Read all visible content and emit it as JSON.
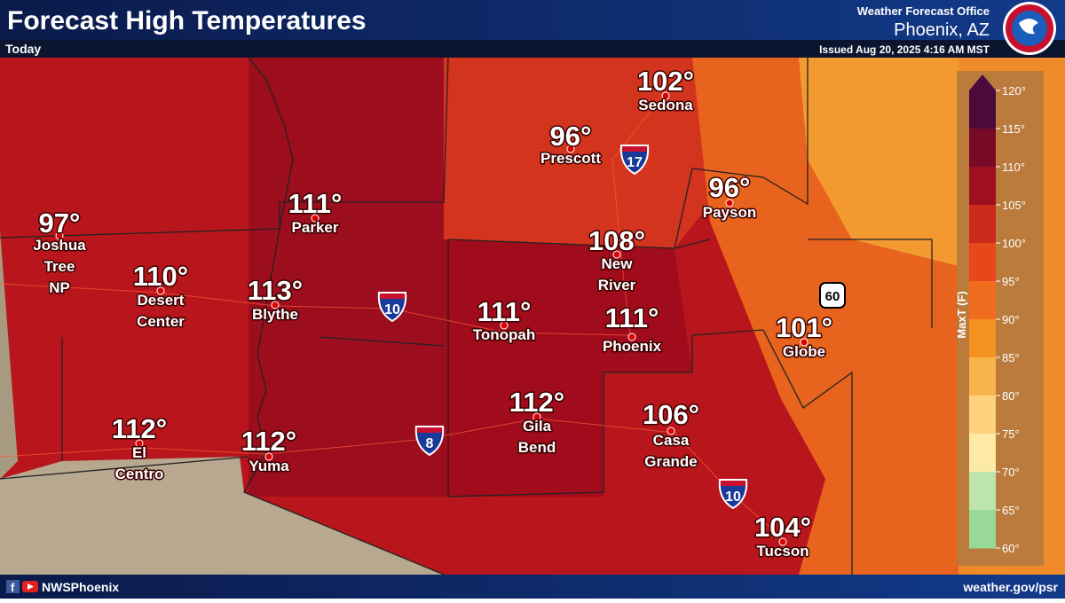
{
  "header": {
    "title": "Forecast High Temperatures",
    "subtitle": "Today",
    "office": "Weather Forecast Office",
    "location": "Phoenix, AZ",
    "issued": "Issued Aug 20, 2025 4:16 AM MST"
  },
  "cities": [
    {
      "temp": "102°",
      "lines": [
        "Sedona"
      ]
    },
    {
      "temp": "96°",
      "lines": [
        "Prescott"
      ]
    },
    {
      "temp": "96°",
      "lines": [
        "Payson"
      ]
    },
    {
      "temp": "108°",
      "lines": [
        "New",
        "River"
      ]
    },
    {
      "temp": "111°",
      "lines": [
        "Parker"
      ]
    },
    {
      "temp": "97°",
      "lines": [
        "Joshua",
        "Tree",
        "NP"
      ]
    },
    {
      "temp": "110°",
      "lines": [
        "Desert",
        "Center"
      ]
    },
    {
      "temp": "113°",
      "lines": [
        "Blythe"
      ]
    },
    {
      "temp": "111°",
      "lines": [
        "Tonopah"
      ]
    },
    {
      "temp": "111°",
      "lines": [
        "Phoenix"
      ]
    },
    {
      "temp": "101°",
      "lines": [
        "Globe"
      ]
    },
    {
      "temp": "112°",
      "lines": [
        "Gila",
        "Bend"
      ]
    },
    {
      "temp": "106°",
      "lines": [
        "Casa",
        "Grande"
      ]
    },
    {
      "temp": "112°",
      "lines": [
        "El",
        "Centro"
      ]
    },
    {
      "temp": "112°",
      "lines": [
        "Yuma"
      ]
    },
    {
      "temp": "104°",
      "lines": [
        "Tucson"
      ]
    }
  ],
  "highways": [
    "17",
    "10",
    "8",
    "60",
    "10"
  ],
  "legend": {
    "title": "MaxT (F)",
    "labels": [
      "120°",
      "115°",
      "110°",
      "105°",
      "100°",
      "95°",
      "90°",
      "85°",
      "80°",
      "75°",
      "70°",
      "65°",
      "60°"
    ]
  },
  "footer": {
    "handle": "NWSPhoenix",
    "url": "weather.gov/psr"
  }
}
